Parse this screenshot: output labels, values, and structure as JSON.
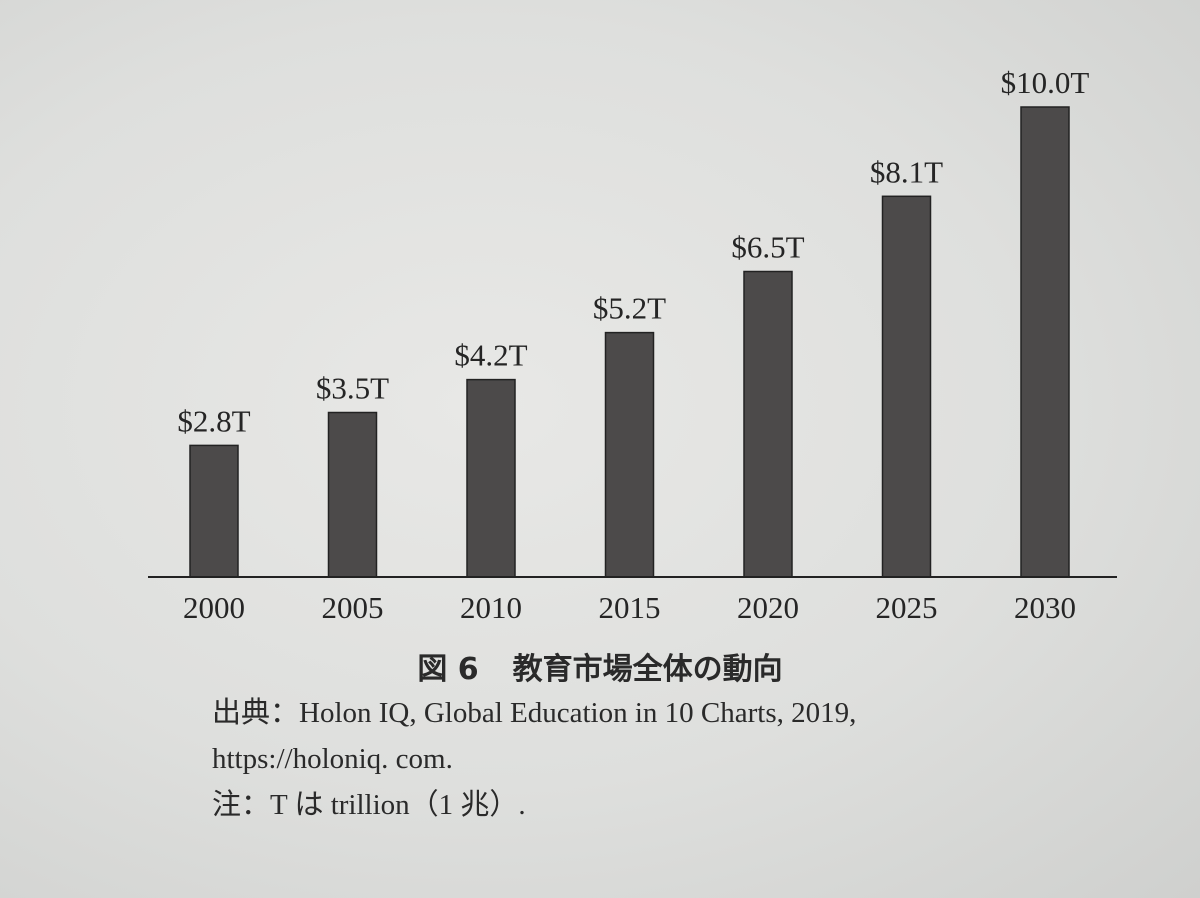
{
  "chart_data": {
    "type": "bar",
    "categories": [
      "2000",
      "2005",
      "2010",
      "2015",
      "2020",
      "2025",
      "2030"
    ],
    "values": [
      2.8,
      3.5,
      4.2,
      5.2,
      6.5,
      8.1,
      10.0
    ],
    "value_labels": [
      "$2.8T",
      "$3.5T",
      "$4.2T",
      "$5.2T",
      "$6.5T",
      "$8.1T",
      "$10.0T"
    ],
    "ylim": [
      0,
      10
    ],
    "grid": false,
    "bar_color": "#4c4a4a"
  },
  "caption": {
    "figure_number": "図 6",
    "title": "教育市場全体の動向"
  },
  "notes": {
    "source_line1": "出典：Holon IQ, Global Education in 10 Charts, 2019,",
    "source_line2": "https://holoniq. com.",
    "note": "注：T は trillion（1 兆）."
  }
}
